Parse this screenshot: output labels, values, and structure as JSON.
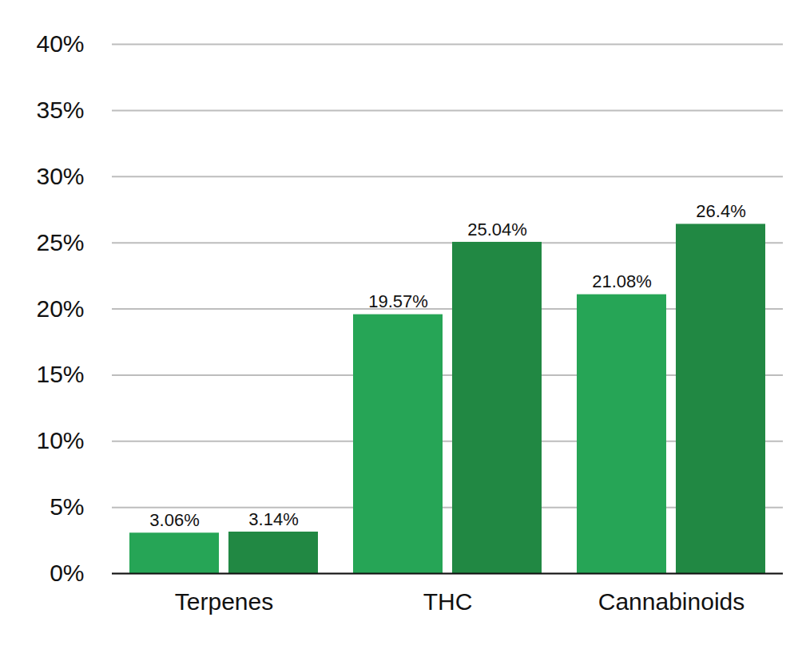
{
  "chart_data": {
    "type": "bar",
    "categories": [
      "Terpenes",
      "THC",
      "Cannabinoids"
    ],
    "series": [
      {
        "color": "#26a556",
        "values": [
          3.06,
          19.57,
          21.08
        ],
        "value_labels": [
          "3.06%",
          "19.57%",
          "21.08%"
        ]
      },
      {
        "color": "#218843",
        "values": [
          3.14,
          25.04,
          26.4
        ],
        "value_labels": [
          "3.14%",
          "25.04%",
          "26.4%"
        ]
      }
    ],
    "ylim": [
      0,
      40
    ],
    "yticks": [
      {
        "value": 0,
        "label": "0%"
      },
      {
        "value": 5,
        "label": "5%"
      },
      {
        "value": 10,
        "label": "10%"
      },
      {
        "value": 15,
        "label": "15%"
      },
      {
        "value": 20,
        "label": "20%"
      },
      {
        "value": 25,
        "label": "25%"
      },
      {
        "value": 30,
        "label": "30%"
      },
      {
        "value": 35,
        "label": "35%"
      },
      {
        "value": 40,
        "label": "40%"
      }
    ],
    "grid": true,
    "data_labels": true
  }
}
